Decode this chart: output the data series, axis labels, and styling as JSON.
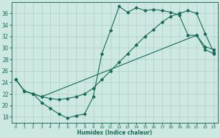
{
  "xlabel": "Humidex (Indice chaleur)",
  "bg_color": "#cce8e0",
  "line_color": "#1a6b5a",
  "grid_color": "#aacfc8",
  "xlim": [
    -0.5,
    23.5
  ],
  "ylim": [
    17,
    38
  ],
  "xticks": [
    0,
    1,
    2,
    3,
    4,
    5,
    6,
    7,
    8,
    9,
    10,
    11,
    12,
    13,
    14,
    15,
    16,
    17,
    18,
    19,
    20,
    21,
    22,
    23
  ],
  "yticks": [
    18,
    20,
    22,
    24,
    26,
    28,
    30,
    32,
    34,
    36
  ],
  "line1_x": [
    0,
    1,
    2,
    3,
    4,
    5,
    6,
    7,
    8,
    9,
    10,
    11,
    12,
    13,
    14,
    15,
    16,
    17,
    18,
    19,
    20,
    21,
    22,
    23
  ],
  "line1_y": [
    24.5,
    22.5,
    22.0,
    20.5,
    19.5,
    18.5,
    17.8,
    18.2,
    18.5,
    21.5,
    29.0,
    33.0,
    37.2,
    36.2,
    37.0,
    36.5,
    36.7,
    36.5,
    36.2,
    35.7,
    32.2,
    32.2,
    30.2,
    29.7
  ],
  "line2_x": [
    0,
    1,
    2,
    3,
    21,
    22,
    23
  ],
  "line2_y": [
    24.5,
    22.5,
    22.0,
    21.5,
    32.2,
    29.7,
    29.0
  ],
  "line3_x": [
    0,
    1,
    2,
    3,
    4,
    5,
    6,
    7,
    8,
    9,
    10,
    11,
    12,
    13,
    14,
    15,
    16,
    17,
    18,
    19,
    20,
    21,
    22,
    23
  ],
  "line3_y": [
    24.5,
    22.5,
    22.0,
    21.5,
    21.2,
    21.0,
    21.2,
    21.5,
    22.0,
    23.0,
    24.5,
    26.0,
    27.5,
    29.0,
    30.5,
    32.0,
    33.2,
    34.5,
    35.5,
    36.0,
    36.5,
    36.0,
    32.5,
    29.2
  ]
}
